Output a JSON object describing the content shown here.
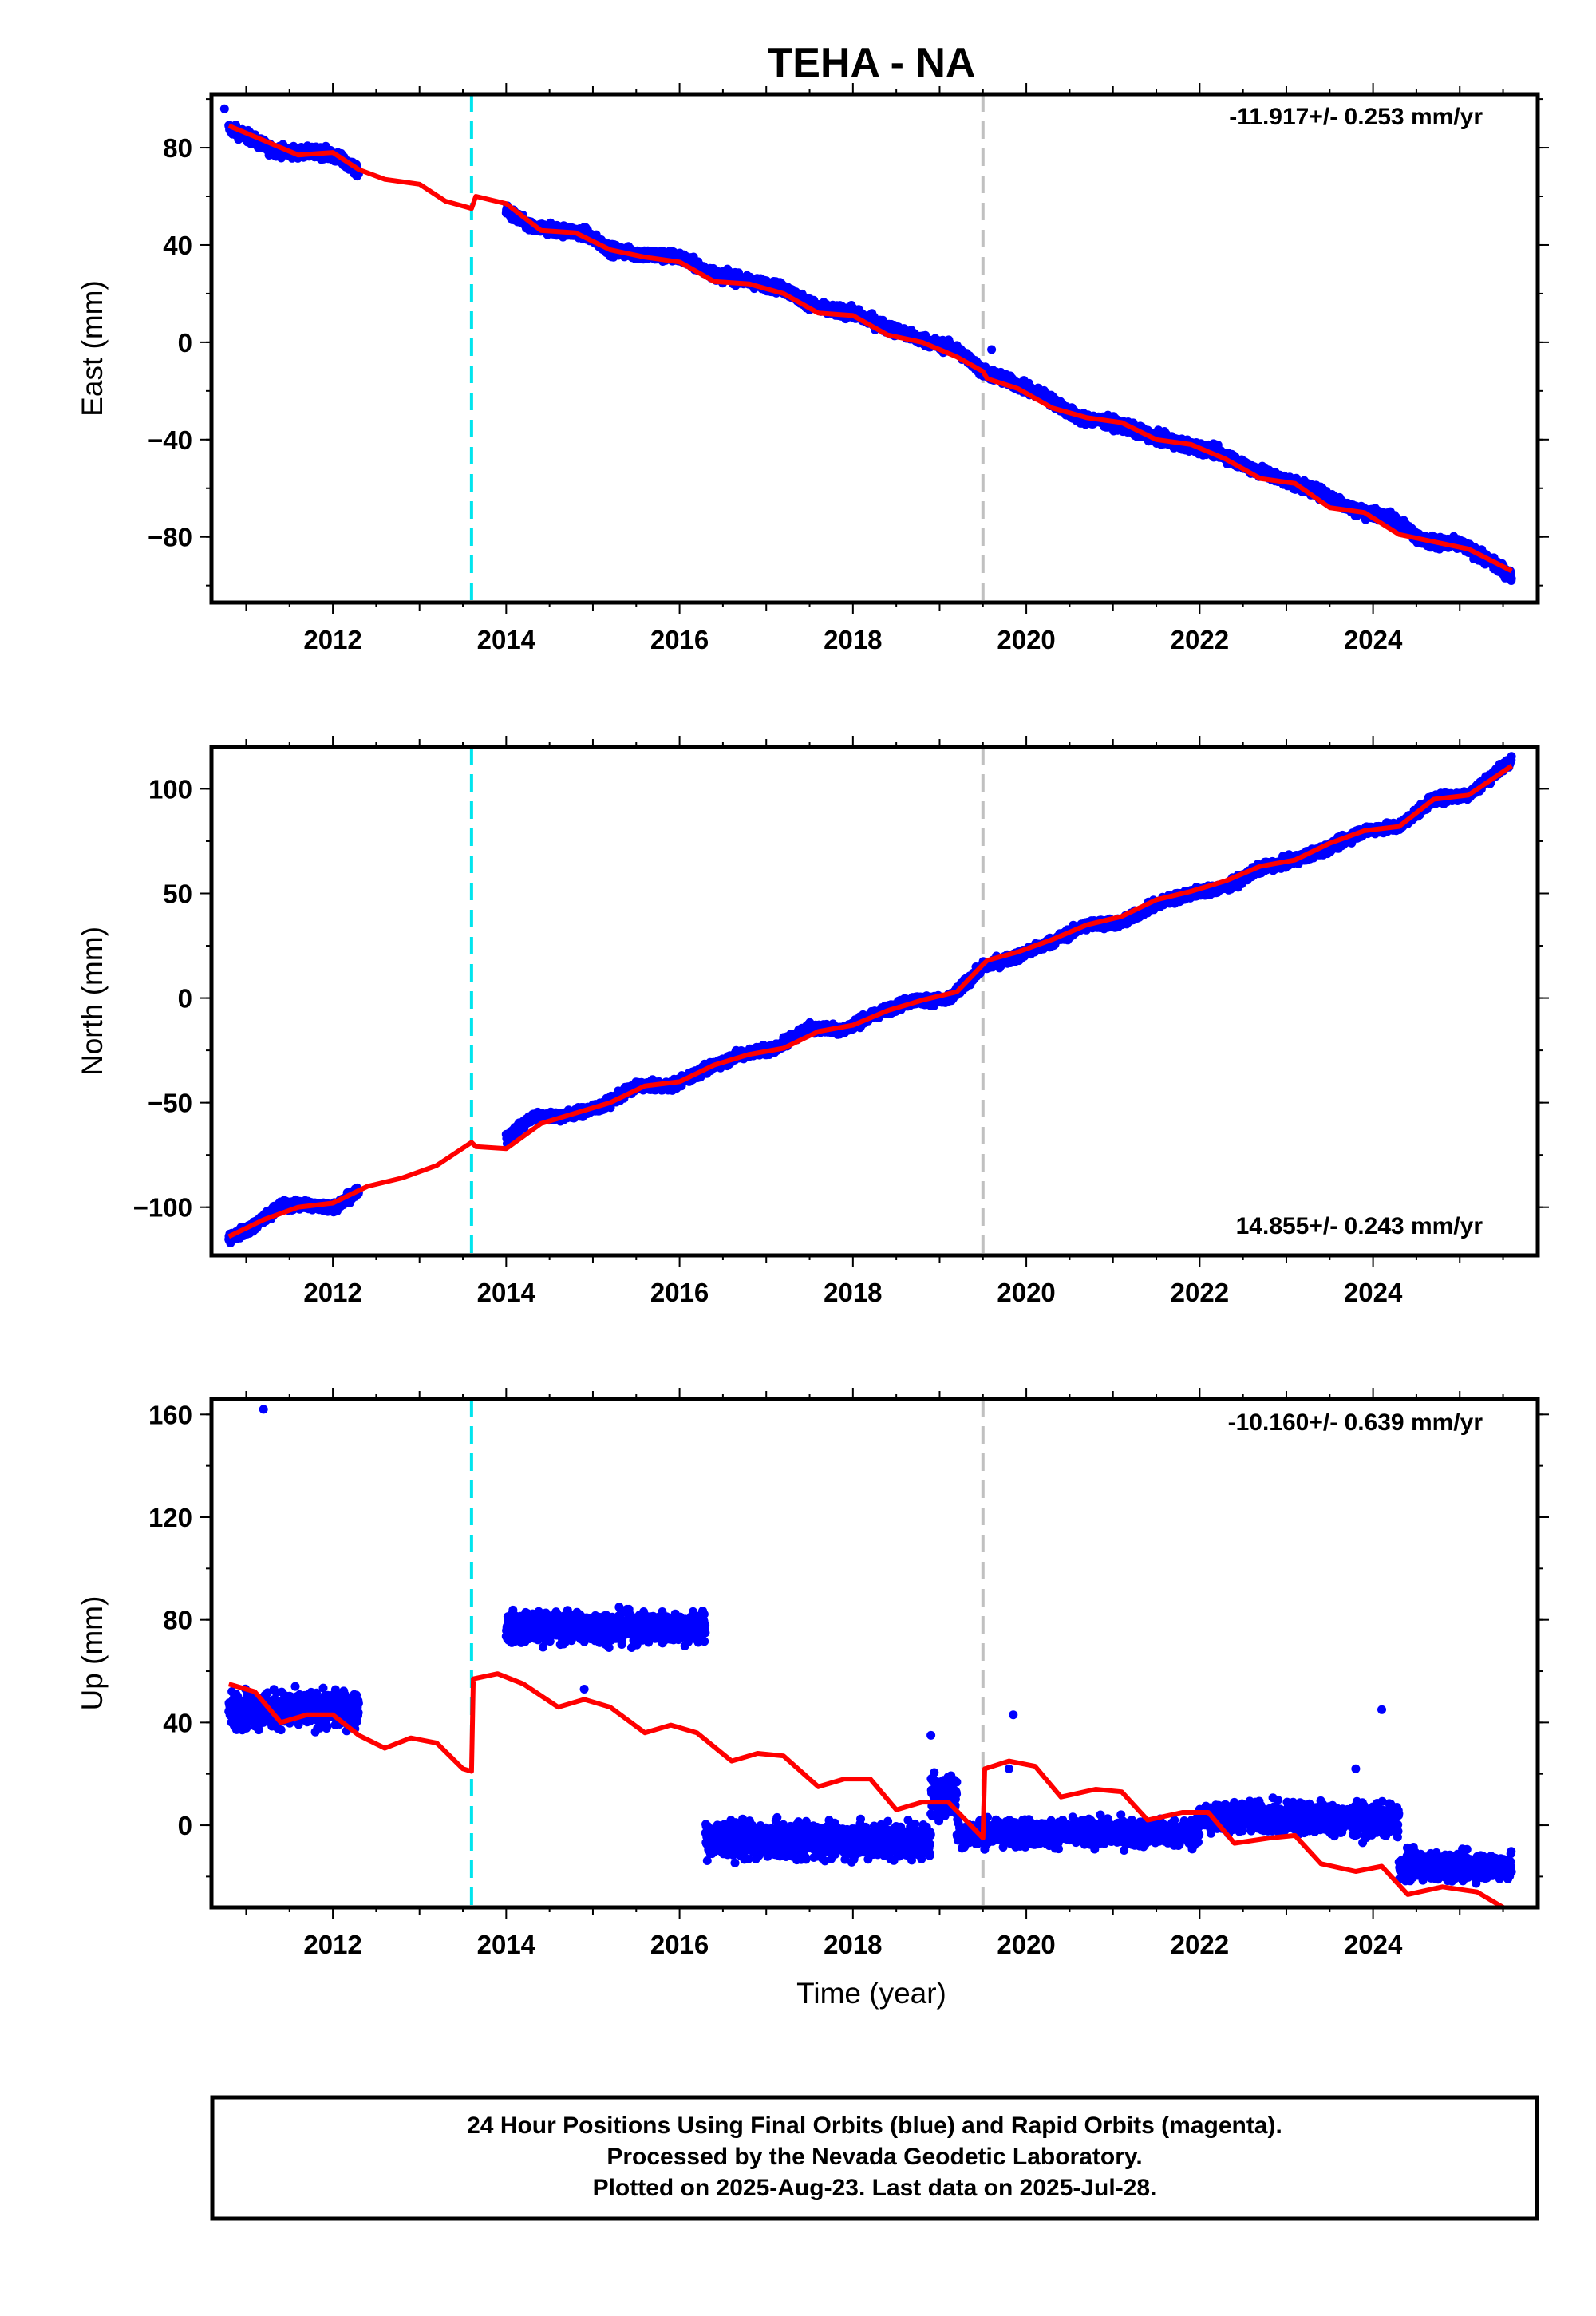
{
  "title": "TEHA - NA",
  "xlabel": "Time (year)",
  "footer": {
    "line1": "24 Hour Positions Using Final Orbits (blue) and Rapid Orbits (magenta).",
    "line2": "Processed by the Nevada Geodetic Laboratory.",
    "line3": "Plotted on 2025-Aug-23. Last data on 2025-Jul-28."
  },
  "colors": {
    "final_orbits": "#0000ff",
    "model_fit": "#ff0000",
    "step_antenna": "#00e5ee",
    "step_other": "#c0c0c0"
  },
  "chart_data": [
    {
      "type": "scatter",
      "panel": "east",
      "ylabel": "East (mm)",
      "rate_label": "-11.917+/- 0.253 mm/yr",
      "xlim": [
        2010.6,
        2025.9
      ],
      "ylim": [
        -107,
        102
      ],
      "xticks": [
        2012,
        2014,
        2016,
        2018,
        2020,
        2022,
        2024
      ],
      "yticks": [
        -80,
        -40,
        0,
        40,
        80
      ],
      "grid": false,
      "vlines": [
        {
          "x": 2013.6,
          "style": "cyan-dashed"
        },
        {
          "x": 2019.5,
          "style": "gray-dashed"
        }
      ],
      "series": [
        {
          "role": "data",
          "segments": [
            [
              2010.8,
              2012.3
            ],
            [
              2014.0,
              2025.6
            ]
          ],
          "x": [
            2010.8,
            2011.0,
            2011.3,
            2011.6,
            2011.9,
            2012.1,
            2012.3,
            2014.0,
            2014.3,
            2014.6,
            2014.9,
            2015.2,
            2015.6,
            2016.0,
            2016.4,
            2016.8,
            2017.2,
            2017.6,
            2018.0,
            2018.4,
            2018.8,
            2019.2,
            2019.5,
            2019.8,
            2020.2,
            2020.6,
            2021.0,
            2021.4,
            2021.8,
            2022.2,
            2022.6,
            2023.0,
            2023.4,
            2023.8,
            2024.2,
            2024.6,
            2025.0,
            2025.3,
            2025.6
          ],
          "y": [
            88,
            85,
            79,
            78,
            78,
            75,
            70,
            54,
            47,
            46,
            45,
            38,
            36,
            35,
            28,
            25,
            22,
            14,
            12,
            6,
            1,
            -3,
            -12,
            -16,
            -22,
            -31,
            -33,
            -38,
            -42,
            -45,
            -52,
            -57,
            -62,
            -69,
            -72,
            -82,
            -83,
            -89,
            -96
          ],
          "outliers": [
            [
              2010.75,
              96
            ],
            [
              2019.6,
              -3
            ]
          ]
        },
        {
          "role": "model",
          "x": [
            2010.8,
            2011.2,
            2011.6,
            2012.0,
            2012.3,
            2012.6,
            2013.0,
            2013.3,
            2013.6,
            2013.65,
            2014.0,
            2014.4,
            2014.8,
            2015.2,
            2015.6,
            2016.0,
            2016.4,
            2016.8,
            2017.2,
            2017.6,
            2018.0,
            2018.4,
            2018.8,
            2019.2,
            2019.5,
            2019.55,
            2019.9,
            2020.3,
            2020.7,
            2021.1,
            2021.5,
            2021.9,
            2022.3,
            2022.7,
            2023.1,
            2023.5,
            2023.9,
            2024.3,
            2024.7,
            2025.1,
            2025.6
          ],
          "y": [
            89,
            83,
            77,
            78,
            71,
            67,
            65,
            58,
            55,
            60,
            57,
            46,
            45,
            38,
            35,
            33,
            25,
            24,
            20,
            12,
            11,
            3,
            0,
            -6,
            -12,
            -15,
            -19,
            -27,
            -31,
            -33,
            -40,
            -42,
            -48,
            -56,
            -58,
            -68,
            -70,
            -79,
            -82,
            -85,
            -94
          ]
        }
      ]
    },
    {
      "type": "scatter",
      "panel": "north",
      "ylabel": "North (mm)",
      "rate_label": "14.855+/- 0.243 mm/yr",
      "xlim": [
        2010.6,
        2025.9
      ],
      "ylim": [
        -123,
        120
      ],
      "xticks": [
        2012,
        2014,
        2016,
        2018,
        2020,
        2022,
        2024
      ],
      "yticks": [
        -100,
        -50,
        0,
        50,
        100
      ],
      "grid": false,
      "vlines": [
        {
          "x": 2013.6,
          "style": "cyan-dashed"
        },
        {
          "x": 2019.5,
          "style": "gray-dashed"
        }
      ],
      "series": [
        {
          "role": "data",
          "segments": [
            [
              2010.8,
              2012.3
            ],
            [
              2014.0,
              2025.6
            ]
          ],
          "x": [
            2010.8,
            2011.1,
            2011.4,
            2011.7,
            2012.0,
            2012.3,
            2014.0,
            2014.3,
            2014.7,
            2015.1,
            2015.5,
            2015.9,
            2016.3,
            2016.7,
            2017.1,
            2017.5,
            2017.9,
            2018.3,
            2018.7,
            2019.1,
            2019.5,
            2019.9,
            2020.3,
            2020.7,
            2021.1,
            2021.5,
            2021.9,
            2022.3,
            2022.7,
            2023.1,
            2023.5,
            2023.9,
            2024.3,
            2024.7,
            2025.1,
            2025.6
          ],
          "y": [
            -115,
            -109,
            -99,
            -99,
            -100,
            -93,
            -67,
            -57,
            -56,
            -52,
            -42,
            -42,
            -34,
            -27,
            -24,
            -14,
            -15,
            -7,
            -1,
            -1,
            15,
            20,
            27,
            35,
            36,
            45,
            50,
            53,
            62,
            66,
            72,
            80,
            82,
            95,
            97,
            114
          ]
        },
        {
          "role": "model",
          "x": [
            2010.8,
            2011.2,
            2011.6,
            2012.0,
            2012.4,
            2012.8,
            2013.2,
            2013.6,
            2013.65,
            2014.0,
            2014.4,
            2014.8,
            2015.2,
            2015.6,
            2016.0,
            2016.4,
            2016.8,
            2017.2,
            2017.6,
            2018.0,
            2018.4,
            2018.8,
            2019.2,
            2019.5,
            2019.55,
            2019.9,
            2020.3,
            2020.7,
            2021.1,
            2021.5,
            2021.9,
            2022.3,
            2022.7,
            2023.1,
            2023.5,
            2023.9,
            2024.3,
            2024.7,
            2025.1,
            2025.6
          ],
          "y": [
            -114,
            -106,
            -100,
            -98,
            -90,
            -86,
            -80,
            -69,
            -71,
            -72,
            -60,
            -55,
            -50,
            -42,
            -40,
            -32,
            -27,
            -24,
            -16,
            -13,
            -6,
            -1,
            3,
            16,
            18,
            22,
            28,
            35,
            39,
            47,
            51,
            56,
            63,
            66,
            74,
            80,
            82,
            95,
            97,
            111
          ]
        }
      ]
    },
    {
      "type": "scatter",
      "panel": "up",
      "ylabel": "Up (mm)",
      "rate_label": "-10.160+/- 0.639 mm/yr",
      "xlim": [
        2010.6,
        2025.9
      ],
      "ylim": [
        -32,
        166
      ],
      "xticks": [
        2012,
        2014,
        2016,
        2018,
        2020,
        2022,
        2024
      ],
      "yticks": [
        0,
        40,
        80,
        120,
        160
      ],
      "grid": false,
      "vlines": [
        {
          "x": 2013.6,
          "style": "cyan-dashed"
        },
        {
          "x": 2019.5,
          "style": "gray-dashed"
        }
      ],
      "series": [
        {
          "role": "data",
          "clusters": [
            {
              "x": [
                2010.8,
                2012.3
              ],
              "center": 45,
              "spread": 8
            },
            {
              "x": [
                2014.0,
                2016.3
              ],
              "center": 77,
              "spread": 7
            },
            {
              "x": [
                2016.3,
                2018.9
              ],
              "center": -6,
              "spread": 8
            },
            {
              "x": [
                2018.9,
                2019.2
              ],
              "center": 12,
              "spread": 10
            },
            {
              "x": [
                2019.2,
                2022.0
              ],
              "center": -3,
              "spread": 6
            },
            {
              "x": [
                2022.0,
                2023.5
              ],
              "center": 3,
              "spread": 7
            },
            {
              "x": [
                2023.5,
                2024.3
              ],
              "center": 2,
              "spread": 7
            },
            {
              "x": [
                2024.3,
                2025.6
              ],
              "center": -16,
              "spread": 6
            }
          ],
          "outliers": [
            [
              2011.2,
              162
            ],
            [
              2014.9,
              53
            ],
            [
              2018.9,
              35
            ],
            [
              2019.85,
              43
            ],
            [
              2019.8,
              22
            ],
            [
              2024.1,
              45
            ],
            [
              2023.8,
              22
            ]
          ]
        },
        {
          "role": "model",
          "x": [
            2010.8,
            2011.1,
            2011.4,
            2011.7,
            2012.0,
            2012.3,
            2012.6,
            2012.9,
            2013.2,
            2013.5,
            2013.6,
            2013.62,
            2013.9,
            2014.2,
            2014.6,
            2014.9,
            2015.2,
            2015.6,
            2015.9,
            2016.2,
            2016.6,
            2016.9,
            2017.2,
            2017.6,
            2017.9,
            2018.2,
            2018.5,
            2018.8,
            2019.1,
            2019.5,
            2019.52,
            2019.8,
            2020.1,
            2020.4,
            2020.8,
            2021.1,
            2021.4,
            2021.8,
            2022.1,
            2022.4,
            2022.8,
            2023.1,
            2023.4,
            2023.8,
            2024.1,
            2024.4,
            2024.8,
            2025.2,
            2025.6
          ],
          "y": [
            55,
            52,
            40,
            43,
            43,
            35,
            30,
            34,
            32,
            22,
            21,
            57,
            59,
            55,
            46,
            49,
            46,
            36,
            39,
            36,
            25,
            28,
            27,
            15,
            18,
            18,
            6,
            9,
            9,
            -5,
            22,
            25,
            23,
            11,
            14,
            13,
            2,
            5,
            5,
            -7,
            -5,
            -4,
            -15,
            -18,
            -16,
            -27,
            -24,
            -26,
            -34
          ]
        }
      ]
    }
  ]
}
